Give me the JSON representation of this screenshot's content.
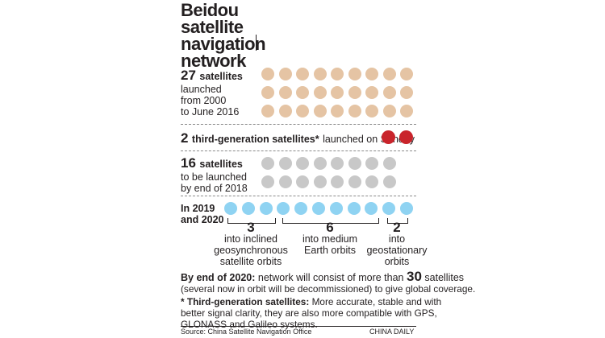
{
  "title_lines": [
    "Beidou",
    "satellite",
    "navigation",
    "network"
  ],
  "colors": {
    "launched": "#e5c4a4",
    "third_gen": "#c9242b",
    "planned": "#c8c8c8",
    "future": "#8fd3f2"
  },
  "section1": {
    "count": "27",
    "unit": "satellites",
    "line2": "launched",
    "line3": "from 2000",
    "line4": "to June 2016",
    "dots": 27
  },
  "section2": {
    "count": "2",
    "label": "third-generation satellites*",
    "suffix": "launched on Sunday",
    "dots": 2
  },
  "section3": {
    "count": "16",
    "unit": "satellites",
    "line2": "to be launched",
    "line3": "by end of 2018",
    "dots": 16
  },
  "section4": {
    "line1": "In 2019",
    "line2": "and 2020",
    "dots": 11,
    "groups": [
      {
        "count": "3",
        "lines": [
          "into inclined",
          "geosynchronous",
          "satellite orbits"
        ]
      },
      {
        "count": "6",
        "lines": [
          "into medium",
          "Earth orbits"
        ]
      },
      {
        "count": "2",
        "lines": [
          "into",
          "geostationary",
          "orbits"
        ]
      }
    ]
  },
  "footer": {
    "end_label": "By end of 2020:",
    "end_text_a": "network will consist of more than",
    "end_number": "30",
    "end_text_b": "satellites",
    "end_line2": "(several now in orbit will be decommissioned) to give global coverage.",
    "note_label": "* Third-generation satellites:",
    "note_text_1": "More accurate, stable and with",
    "note_line2": "better signal clarity, they are also more compatible with GPS,",
    "note_line3": "GLONASS and Galileo systems.",
    "source": "Source: China Satellite Navigation Office",
    "credit": "CHINA DAILY"
  }
}
